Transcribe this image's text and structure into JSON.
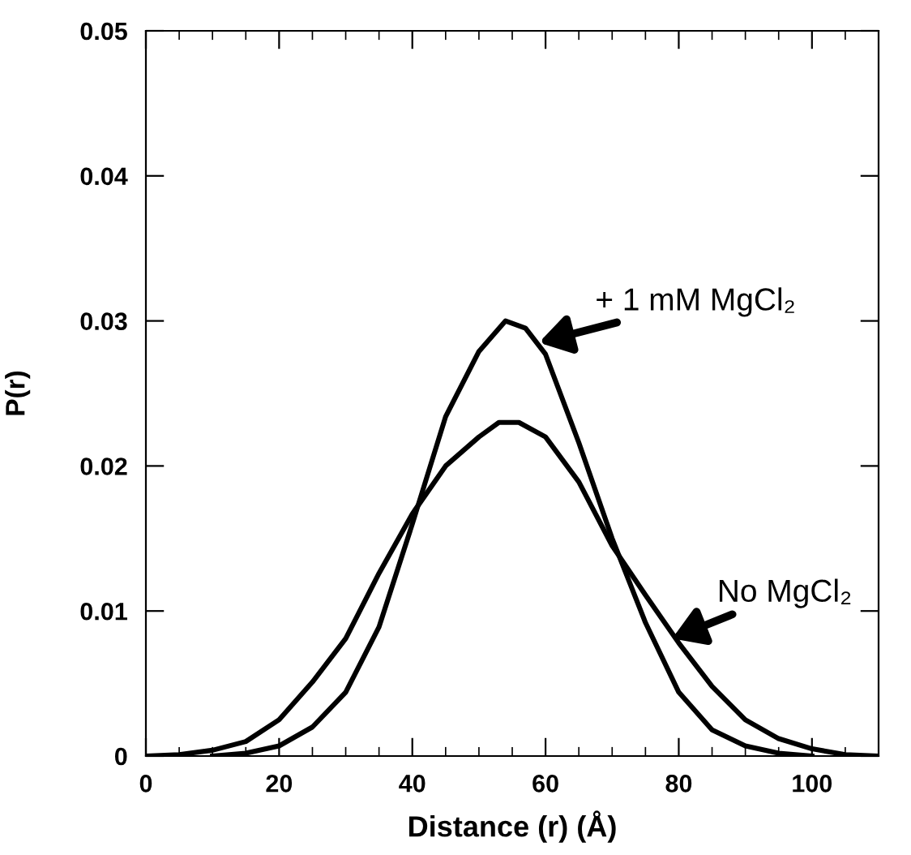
{
  "chart_data": {
    "type": "line",
    "xlabel": "Distance (r) (Å)",
    "ylabel": "P(r)",
    "xlim": [
      0,
      110
    ],
    "xticks": [
      0,
      20,
      40,
      60,
      80,
      100
    ],
    "ylim": [
      0,
      0.05
    ],
    "yticks": [
      0,
      0.01,
      0.02,
      0.03,
      0.04,
      0.05
    ],
    "grid": false,
    "legend": false,
    "marker": "none",
    "line_style": "solid",
    "series": [
      {
        "color": "#000000",
        "x": [
          0,
          5,
          10,
          15,
          20,
          25,
          30,
          35,
          40,
          45,
          50,
          53,
          56,
          60,
          65,
          70,
          75,
          80,
          85,
          90,
          95,
          100,
          105,
          110
        ],
        "values": [
          0,
          0.0001,
          0.0004,
          0.001,
          0.0025,
          0.0051,
          0.0081,
          0.0126,
          0.0167,
          0.02,
          0.022,
          0.023,
          0.023,
          0.022,
          0.0189,
          0.0145,
          0.0111,
          0.0078,
          0.0048,
          0.0025,
          0.0012,
          0.0005,
          0.0001,
          0
        ]
      },
      {
        "color": "#000000",
        "x": [
          10,
          15,
          20,
          25,
          30,
          35,
          40,
          45,
          50,
          54,
          57,
          60,
          65,
          70,
          75,
          80,
          85,
          90,
          95,
          100
        ],
        "values": [
          0,
          0.0002,
          0.0007,
          0.002,
          0.0044,
          0.0089,
          0.016,
          0.0234,
          0.0279,
          0.03,
          0.0295,
          0.0277,
          0.0216,
          0.015,
          0.0092,
          0.0044,
          0.0018,
          0.0007,
          0.0002,
          0
        ]
      }
    ],
    "annotations": [
      {
        "text": "+ 1 mM MgCl₂",
        "x": 59,
        "y": 0.0285
      },
      {
        "text": "No MgCl₂",
        "x": 79,
        "y": 0.0081
      }
    ]
  }
}
